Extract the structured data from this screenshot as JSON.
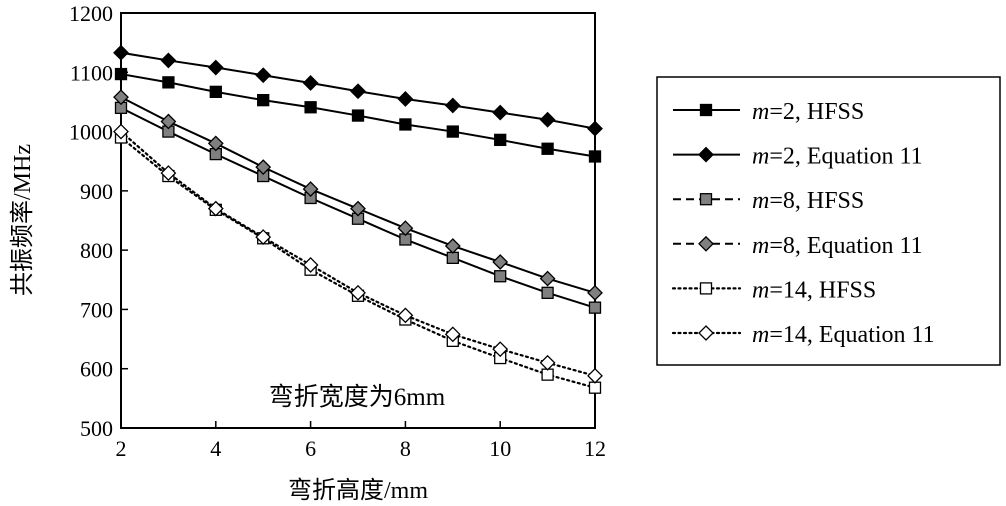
{
  "chart_data": {
    "type": "line",
    "xlabel": "弯折高度/mm",
    "ylabel": "共振频率/MHz",
    "annotation": "弯折宽度为6mm",
    "xlim": [
      2,
      12
    ],
    "ylim": [
      500,
      1200
    ],
    "xticks": [
      2,
      4,
      6,
      8,
      10,
      12
    ],
    "yticks": [
      500,
      600,
      700,
      800,
      900,
      1000,
      1100,
      1200
    ],
    "grid": false,
    "legend_position": "right",
    "x": [
      2,
      3,
      4,
      5,
      6,
      7,
      8,
      9,
      10,
      11,
      12
    ],
    "series": [
      {
        "name": "m=2, HFSS",
        "legend_m": "2",
        "legend_suffix": "HFSS",
        "marker": "square",
        "fill": "#000000",
        "dash": "solid",
        "values": [
          1097,
          1083,
          1067,
          1053,
          1041,
          1027,
          1012,
          1000,
          986,
          971,
          958
        ]
      },
      {
        "name": "m=2, Equation 11",
        "legend_m": "2",
        "legend_suffix": "Equation 11",
        "marker": "diamond",
        "fill": "#000000",
        "dash": "solid",
        "values": [
          1133,
          1120,
          1108,
          1095,
          1082,
          1068,
          1055,
          1044,
          1032,
          1020,
          1005
        ]
      },
      {
        "name": "m=8, HFSS",
        "legend_m": "8",
        "legend_suffix": "HFSS",
        "marker": "square",
        "fill": "#808080",
        "dash": "solid",
        "values": [
          1040,
          1000,
          962,
          925,
          888,
          853,
          818,
          787,
          756,
          728,
          703
        ]
      },
      {
        "name": "m=8, Equation 11",
        "legend_m": "8",
        "legend_suffix": "Equation 11",
        "marker": "diamond",
        "fill": "#808080",
        "dash": "solid",
        "values": [
          1058,
          1017,
          980,
          940,
          903,
          870,
          837,
          807,
          780,
          752,
          728
        ]
      },
      {
        "name": "m=14, HFSS",
        "legend_m": "14",
        "legend_suffix": "HFSS",
        "marker": "square",
        "fill": "#ffffff",
        "dash": "dotted",
        "values": [
          990,
          925,
          868,
          820,
          767,
          723,
          683,
          647,
          618,
          590,
          568
        ]
      },
      {
        "name": "m=14, Equation 11",
        "legend_m": "14",
        "legend_suffix": "Equation 11",
        "marker": "diamond",
        "fill": "#ffffff",
        "dash": "dotted",
        "values": [
          1000,
          930,
          870,
          822,
          775,
          728,
          690,
          658,
          633,
          610,
          588
        ]
      }
    ],
    "legend_dash_note": "legend samples drawn dashed for m=8, dotted for m=14"
  }
}
